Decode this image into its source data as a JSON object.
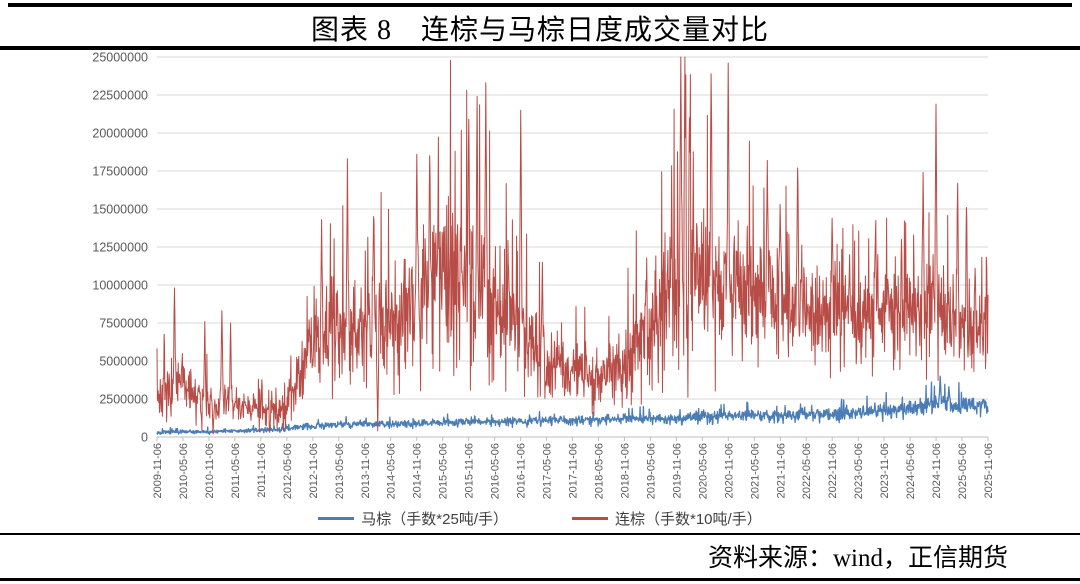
{
  "header": {
    "title": "图表 8　连棕与马棕日度成交量对比"
  },
  "footer": {
    "source_label": "资料来源：wind，正信期货"
  },
  "colors": {
    "red": "#b84c46",
    "blue": "#4a7cb5",
    "grid": "#d9d9d9",
    "axis": "#bfbfbf",
    "tick_text": "#595959",
    "rule": "#000000"
  },
  "chart_data": {
    "type": "line",
    "title": "连棕与马棕日度成交量对比",
    "xlabel": "",
    "ylabel": "",
    "ylim": [
      0,
      25000000
    ],
    "y_ticks": [
      0,
      2500000,
      5000000,
      7500000,
      10000000,
      12500000,
      15000000,
      17500000,
      20000000,
      22500000,
      25000000
    ],
    "x_range": [
      "2009-11-06",
      "2025-11-06"
    ],
    "x_tick_labels": [
      "2009-11-06",
      "2010-05-06",
      "2010-11-06",
      "2011-05-06",
      "2011-11-06",
      "2012-05-06",
      "2012-11-06",
      "2013-05-06",
      "2013-11-06",
      "2014-05-06",
      "2014-11-06",
      "2015-05-06",
      "2015-11-06",
      "2016-05-06",
      "2016-11-06",
      "2017-05-06",
      "2017-11-06",
      "2018-05-06",
      "2018-11-06",
      "2019-05-06",
      "2019-11-06",
      "2020-05-06",
      "2020-11-06",
      "2021-05-06",
      "2021-11-06",
      "2022-05-06",
      "2022-11-06",
      "2023-05-06",
      "2023-11-06",
      "2024-05-06",
      "2024-11-06",
      "2025-05-06",
      "2025-11-06"
    ],
    "grid": "horizontal",
    "legend_position": "bottom",
    "series": [
      {
        "id": "mazong",
        "name": "马棕（手数*25吨/手）",
        "color": "#4a7cb5",
        "stroke_width": 1.3,
        "seed": 13,
        "anchor_dates": [
          "2009-11",
          "2010-05",
          "2010-11",
          "2011-05",
          "2011-11",
          "2012-05",
          "2012-11",
          "2013-05",
          "2013-11",
          "2014-05",
          "2014-11",
          "2015-05",
          "2015-11",
          "2016-05",
          "2016-11",
          "2017-05",
          "2017-11",
          "2018-05",
          "2018-11",
          "2019-05",
          "2019-11",
          "2020-05",
          "2020-11",
          "2021-05",
          "2021-11",
          "2022-05",
          "2022-11",
          "2023-05",
          "2023-11",
          "2024-05",
          "2024-11",
          "2025-05",
          "2025-11"
        ],
        "base": [
          300000,
          350000,
          350000,
          400000,
          450000,
          550000,
          750000,
          800000,
          850000,
          850000,
          900000,
          950000,
          1000000,
          1000000,
          1050000,
          1100000,
          1100000,
          1150000,
          1200000,
          1250000,
          1200000,
          1300000,
          1400000,
          1450000,
          1400000,
          1500000,
          1450000,
          1550000,
          1700000,
          1900000,
          2200000,
          2100000,
          2000000
        ],
        "volatility": [
          100000,
          120000,
          120000,
          120000,
          150000,
          180000,
          200000,
          200000,
          220000,
          220000,
          250000,
          250000,
          250000,
          250000,
          280000,
          280000,
          280000,
          300000,
          300000,
          320000,
          320000,
          350000,
          350000,
          350000,
          350000,
          380000,
          380000,
          400000,
          450000,
          500000,
          600000,
          550000,
          500000
        ],
        "spikes": [
          {
            "date": "2024-12",
            "value": 4000000
          },
          {
            "date": "2025-02",
            "value": 3300000
          }
        ],
        "dips": []
      },
      {
        "id": "lianzong",
        "name": "连棕（手数*10吨/手）",
        "color": "#b84c46",
        "stroke_width": 1.0,
        "seed": 7,
        "anchor_dates": [
          "2009-11",
          "2010-05",
          "2010-11",
          "2011-05",
          "2011-11",
          "2012-05",
          "2012-11",
          "2013-05",
          "2013-11",
          "2014-05",
          "2014-11",
          "2015-05",
          "2015-11",
          "2016-05",
          "2016-11",
          "2017-05",
          "2017-11",
          "2018-05",
          "2018-11",
          "2019-05",
          "2019-11",
          "2020-05",
          "2020-11",
          "2021-05",
          "2021-11",
          "2022-05",
          "2022-11",
          "2023-05",
          "2023-11",
          "2024-05",
          "2024-11",
          "2025-05",
          "2025-11"
        ],
        "base": [
          2500000,
          3500000,
          2000000,
          2200000,
          1800000,
          2200000,
          6500000,
          7500000,
          7000000,
          8000000,
          9000000,
          11000000,
          10000000,
          9000000,
          7000000,
          5000000,
          4500000,
          4000000,
          5000000,
          7500000,
          10000000,
          10500000,
          9500000,
          10000000,
          9000000,
          8500000,
          8000000,
          7500000,
          8000000,
          8500000,
          9000000,
          7500000,
          7000000
        ],
        "volatility": [
          1500000,
          2000000,
          1200000,
          1200000,
          1000000,
          1500000,
          3000000,
          3500000,
          3000000,
          3500000,
          4500000,
          5500000,
          5000000,
          4500000,
          3000000,
          2000000,
          1800000,
          1800000,
          2200000,
          4000000,
          5000000,
          5500000,
          4000000,
          4000000,
          3500000,
          3000000,
          2800000,
          2600000,
          2800000,
          3200000,
          3500000,
          2800000,
          2500000
        ],
        "spikes": [
          {
            "date": "2010-03",
            "value": 9800000
          },
          {
            "date": "2010-10",
            "value": 7600000
          },
          {
            "date": "2011-02",
            "value": 8300000
          },
          {
            "date": "2011-04",
            "value": 7500000
          },
          {
            "date": "2013-01",
            "value": 14300000
          },
          {
            "date": "2013-07",
            "value": 18300000
          },
          {
            "date": "2014-01",
            "value": 14500000
          },
          {
            "date": "2014-11",
            "value": 18600000
          },
          {
            "date": "2015-02",
            "value": 18500000
          },
          {
            "date": "2015-11",
            "value": 20900000
          },
          {
            "date": "2016-01",
            "value": 22400000
          },
          {
            "date": "2016-03",
            "value": 23300000
          },
          {
            "date": "2016-11",
            "value": 21500000
          },
          {
            "date": "2017-04",
            "value": 11500000
          },
          {
            "date": "2019-04",
            "value": 10300000
          },
          {
            "date": "2019-12",
            "value": 25000000
          },
          {
            "date": "2020-01",
            "value": 25000000
          },
          {
            "date": "2020-02",
            "value": 21000000
          },
          {
            "date": "2020-07",
            "value": 23900000
          },
          {
            "date": "2020-11",
            "value": 24600000
          },
          {
            "date": "2021-08",
            "value": 18200000
          },
          {
            "date": "2021-11",
            "value": 15300000
          },
          {
            "date": "2022-03",
            "value": 17700000
          },
          {
            "date": "2022-11",
            "value": 14400000
          },
          {
            "date": "2023-03",
            "value": 12000000
          },
          {
            "date": "2023-09",
            "value": 13000000
          },
          {
            "date": "2024-03",
            "value": 13000000
          },
          {
            "date": "2024-08",
            "value": 17400000
          },
          {
            "date": "2024-11",
            "value": 21900000
          },
          {
            "date": "2025-04",
            "value": 16700000
          },
          {
            "date": "2025-06",
            "value": 15100000
          },
          {
            "date": "2025-08",
            "value": 11100000
          }
        ],
        "dips": [
          {
            "date": "2010-12",
            "value": 200000
          },
          {
            "date": "2012-01",
            "value": 300000
          },
          {
            "date": "2014-02",
            "value": 400000
          }
        ]
      }
    ]
  }
}
